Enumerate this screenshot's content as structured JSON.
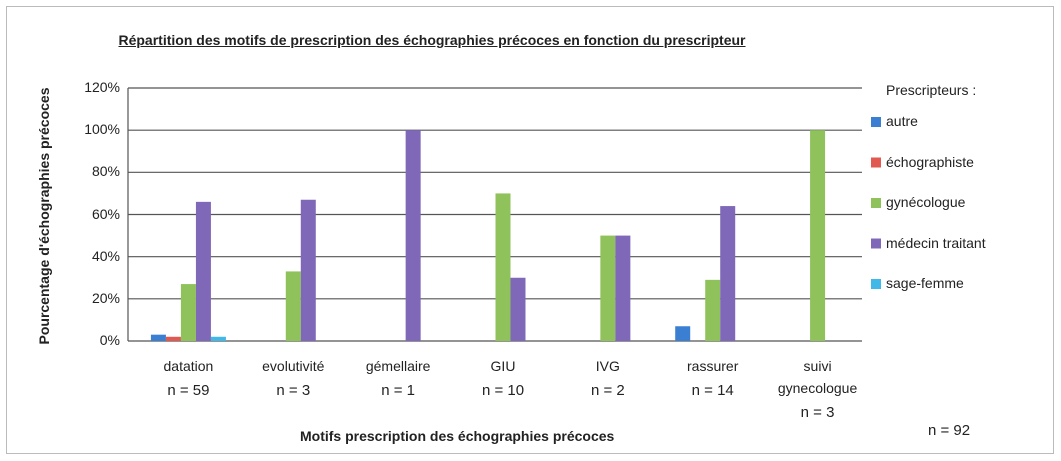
{
  "chart_data": {
    "type": "bar",
    "title": "Répartition des motifs de prescription des échographies précoces en fonction du prescripteur",
    "ylabel": "Pourcentage d'échographies précoces",
    "xlabel": "Motifs prescription des échographies précoces",
    "legend_title": "Prescripteurs :",
    "total_label": "n = 92",
    "categories": [
      "datation",
      "evolutivité",
      "gémellaire",
      "GIU",
      "IVG",
      "rassurer",
      "suivi gynecologue"
    ],
    "category_counts": [
      "n = 59",
      "n = 3",
      "n = 1",
      "n = 10",
      "n = 2",
      "n = 14",
      "n = 3"
    ],
    "series": [
      {
        "name": "autre",
        "color": "#3b7fd2",
        "values": [
          3,
          0,
          0,
          0,
          0,
          7,
          0
        ]
      },
      {
        "name": "échographiste",
        "color": "#e05a52",
        "values": [
          2,
          0,
          0,
          0,
          0,
          0,
          0
        ]
      },
      {
        "name": "gynécologue",
        "color": "#8fc25a",
        "values": [
          27,
          33,
          0,
          70,
          50,
          29,
          100
        ]
      },
      {
        "name": "médecin traitant",
        "color": "#7f68b8",
        "values": [
          66,
          67,
          100,
          30,
          50,
          64,
          0
        ]
      },
      {
        "name": "sage-femme",
        "color": "#42b8e8",
        "values": [
          2,
          0,
          0,
          0,
          0,
          0,
          0
        ]
      }
    ],
    "ylim": [
      0,
      120
    ],
    "yticks": [
      {
        "value": 0,
        "label": "0%"
      },
      {
        "value": 20,
        "label": "20%"
      },
      {
        "value": 40,
        "label": "40%"
      },
      {
        "value": 60,
        "label": "60%"
      },
      {
        "value": 80,
        "label": "80%"
      },
      {
        "value": 100,
        "label": "100%"
      },
      {
        "value": 120,
        "label": "120%"
      }
    ],
    "grid": true,
    "legend": "right"
  }
}
